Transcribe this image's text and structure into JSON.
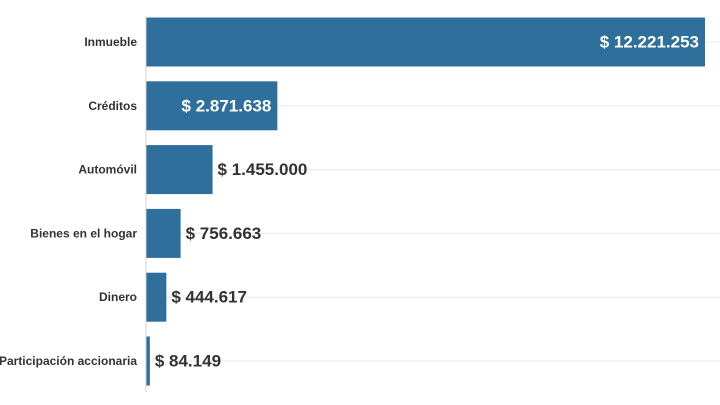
{
  "chart_data": {
    "type": "bar",
    "orientation": "horizontal",
    "categories": [
      "Inmueble",
      "Créditos",
      "Automóvil",
      "Bienes en el hogar",
      "Dinero",
      "Participación accionaria"
    ],
    "values": [
      12221253,
      2871638,
      1455000,
      756663,
      444617,
      84149
    ],
    "value_labels": [
      "$ 12.221.253",
      "$ 2.871.638",
      "$ 1.455.000",
      "$ 756.663",
      "$ 444.617",
      "$ 84.149"
    ],
    "xlim": [
      0,
      12680000
    ],
    "grid": true,
    "legend": "none",
    "colors": {
      "bar": "#2f6f9c",
      "text": "#333333",
      "inside_text": "#ffffff"
    }
  }
}
